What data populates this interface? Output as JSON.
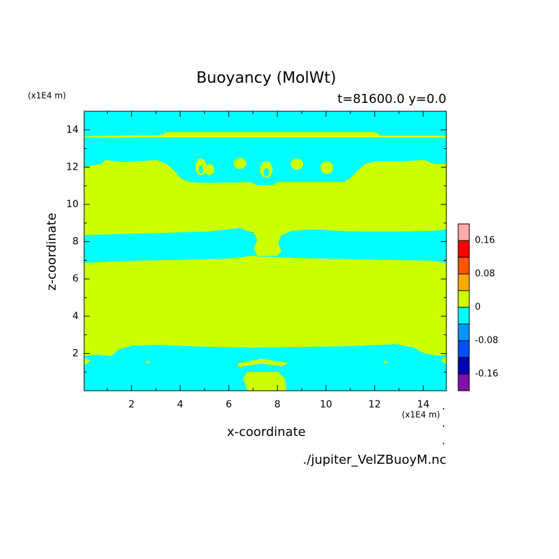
{
  "chart_data": {
    "type": "contour",
    "title": "Buoyancy (MolWt)",
    "subtitle": "t=81600.0 y=0.0",
    "x_label": "x-coordinate",
    "y_label": "z-coordinate",
    "x_unit": "(x1E4 m)",
    "y_unit": "(x1E4 m)",
    "footer": "./jupiter_VelZBuoyM.nc",
    "xlim": [
      0.05,
      14.95
    ],
    "ylim": [
      0,
      15
    ],
    "xticks": [
      2,
      4,
      6,
      8,
      10,
      12,
      14
    ],
    "yticks": [
      2,
      4,
      6,
      8,
      10,
      12,
      14
    ],
    "xminor_ticks": [
      1,
      3,
      5,
      7,
      9,
      11,
      13
    ],
    "yminor_ticks": [
      1,
      3,
      5,
      7,
      9,
      11,
      13
    ],
    "levels": [
      -0.16,
      -0.12,
      -0.08,
      -0.04,
      0,
      0.04,
      0.08,
      0.12,
      0.16
    ],
    "colors": [
      "#8010a8",
      "#0000b4",
      "#0050ff",
      "#0096ff",
      "#00ffff",
      "#ccff00",
      "#ffaa00",
      "#ff5500",
      "#ff0000",
      "#ffaaaa"
    ],
    "colorbar_ticks": [
      -0.16,
      -0.08,
      0,
      0.08,
      0.16
    ]
  }
}
